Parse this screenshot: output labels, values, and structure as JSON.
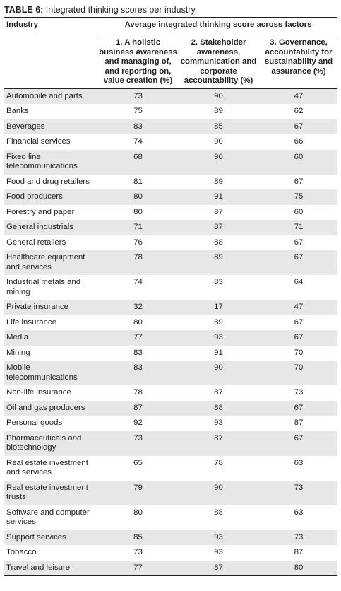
{
  "caption": {
    "label": "TABLE 6:",
    "text": " Integrated thinking scores per industry."
  },
  "headers": {
    "industry": "Industry",
    "group": "Average integrated thinking score across factors",
    "factors": [
      "1. A holistic business awareness and managing of, and reporting on, value creation (%)",
      "2. Stakeholder awareness, communication and corporate accountability (%)",
      "3. Governance, accountability for sustainability and assurance (%)"
    ]
  },
  "rows": [
    {
      "industry": "Automobile and parts",
      "f1": "73",
      "f2": "90",
      "f3": "47"
    },
    {
      "industry": "Banks",
      "f1": "75",
      "f2": "89",
      "f3": "62"
    },
    {
      "industry": "Beverages",
      "f1": "83",
      "f2": "85",
      "f3": "67"
    },
    {
      "industry": "Financial services",
      "f1": "74",
      "f2": "90",
      "f3": "66"
    },
    {
      "industry": "Fixed line telecommunications",
      "f1": "68",
      "f2": "90",
      "f3": "60"
    },
    {
      "industry": "Food and drug retailers",
      "f1": "81",
      "f2": "89",
      "f3": "67"
    },
    {
      "industry": "Food producers",
      "f1": "80",
      "f2": "91",
      "f3": "75"
    },
    {
      "industry": "Forestry and paper",
      "f1": "80",
      "f2": "87",
      "f3": "60"
    },
    {
      "industry": "General industrials",
      "f1": "71",
      "f2": "87",
      "f3": "71"
    },
    {
      "industry": "General retailers",
      "f1": "76",
      "f2": "88",
      "f3": "67"
    },
    {
      "industry": "Healthcare equipment and services",
      "f1": "78",
      "f2": "89",
      "f3": "67"
    },
    {
      "industry": "Industrial metals and mining",
      "f1": "74",
      "f2": "83",
      "f3": "64"
    },
    {
      "industry": "Private insurance",
      "f1": "32",
      "f2": "17",
      "f3": "47"
    },
    {
      "industry": "Life insurance",
      "f1": "80",
      "f2": "89",
      "f3": "67"
    },
    {
      "industry": "Media",
      "f1": "77",
      "f2": "93",
      "f3": "67"
    },
    {
      "industry": "Mining",
      "f1": "83",
      "f2": "91",
      "f3": "70"
    },
    {
      "industry": "Mobile telecommunications",
      "f1": "83",
      "f2": "90",
      "f3": "70"
    },
    {
      "industry": "Non-life insurance",
      "f1": "78",
      "f2": "87",
      "f3": "73"
    },
    {
      "industry": "Oil and gas producers",
      "f1": "87",
      "f2": "88",
      "f3": "67"
    },
    {
      "industry": "Personal goods",
      "f1": "92",
      "f2": "93",
      "f3": "87"
    },
    {
      "industry": "Pharmaceuticals and biotechnology",
      "f1": "73",
      "f2": "87",
      "f3": "67"
    },
    {
      "industry": "Real estate investment and services",
      "f1": "65",
      "f2": "78",
      "f3": "63"
    },
    {
      "industry": "Real estate investment trusts",
      "f1": "79",
      "f2": "90",
      "f3": "73"
    },
    {
      "industry": "Software and computer services",
      "f1": "80",
      "f2": "88",
      "f3": "63"
    },
    {
      "industry": "Support services",
      "f1": "85",
      "f2": "93",
      "f3": "73"
    },
    {
      "industry": "Tobacco",
      "f1": "73",
      "f2": "93",
      "f3": "87"
    },
    {
      "industry": "Travel and leisure",
      "f1": "77",
      "f2": "87",
      "f3": "80"
    }
  ]
}
